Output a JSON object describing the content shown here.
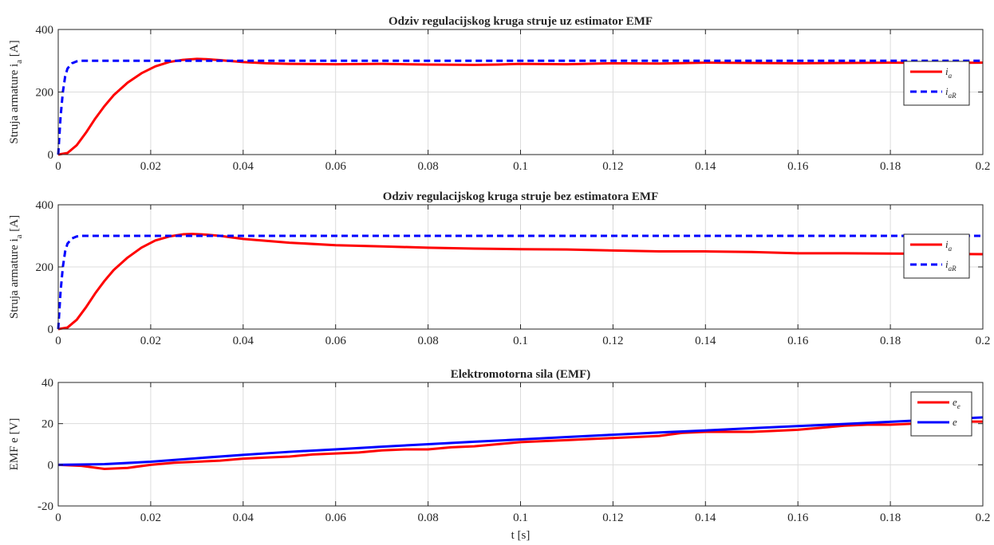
{
  "chart_data": [
    {
      "type": "line",
      "title": "Odziv regulacijskog kruga struje uz estimator EMF",
      "ylabel": "Struja armature i",
      "ylabel_sub": "a",
      "ylabel_unit": " [A]",
      "xlabel": "",
      "xlim": [
        0,
        0.2
      ],
      "ylim": [
        0,
        400
      ],
      "xticks": [
        0,
        0.02,
        0.04,
        0.06,
        0.08,
        0.1,
        0.12,
        0.14,
        0.16,
        0.18,
        0.2
      ],
      "xtick_labels": [
        "0",
        "0.02",
        "0.04",
        "0.06",
        "0.08",
        "0.1",
        "0.12",
        "0.14",
        "0.16",
        "0.18",
        "0.2"
      ],
      "yticks": [
        0,
        200,
        400
      ],
      "ytick_labels": [
        "0",
        "200",
        "400"
      ],
      "grid": true,
      "legend_position": "right",
      "series": [
        {
          "name": "i",
          "name_sub": "a",
          "color": "#ff0000",
          "style": "solid",
          "x": [
            0,
            0.002,
            0.004,
            0.006,
            0.008,
            0.01,
            0.012,
            0.015,
            0.018,
            0.021,
            0.024,
            0.027,
            0.03,
            0.032,
            0.035,
            0.04,
            0.045,
            0.05,
            0.06,
            0.07,
            0.08,
            0.09,
            0.095,
            0.1,
            0.11,
            0.12,
            0.13,
            0.14,
            0.15,
            0.16,
            0.17,
            0.18,
            0.19,
            0.2
          ],
          "y": [
            0,
            5,
            30,
            70,
            115,
            155,
            190,
            230,
            260,
            282,
            296,
            303,
            306,
            305,
            302,
            296,
            292,
            290,
            289,
            290,
            288,
            287,
            288,
            290,
            289,
            292,
            291,
            294,
            293,
            292,
            293,
            294,
            293,
            294
          ]
        },
        {
          "name": "i",
          "name_sub": "aR",
          "color": "#0000ff",
          "style": "dashed",
          "x": [
            0,
            0.0005,
            0.001,
            0.0015,
            0.002,
            0.003,
            0.004,
            0.005,
            0.2
          ],
          "y": [
            0,
            120,
            200,
            250,
            275,
            292,
            298,
            300,
            300
          ]
        }
      ]
    },
    {
      "type": "line",
      "title": "Odziv regulacijskog kruga struje bez estimatora EMF",
      "ylabel": "Struja armature i",
      "ylabel_sub": "a",
      "ylabel_unit": " [A]",
      "xlabel": "",
      "xlim": [
        0,
        0.2
      ],
      "ylim": [
        0,
        400
      ],
      "xticks": [
        0,
        0.02,
        0.04,
        0.06,
        0.08,
        0.1,
        0.12,
        0.14,
        0.16,
        0.18,
        0.2
      ],
      "xtick_labels": [
        "0",
        "0.02",
        "0.04",
        "0.06",
        "0.08",
        "0.1",
        "0.12",
        "0.14",
        "0.16",
        "0.18",
        "0.2"
      ],
      "yticks": [
        0,
        200,
        400
      ],
      "ytick_labels": [
        "0",
        "200",
        "400"
      ],
      "grid": true,
      "legend_position": "right",
      "series": [
        {
          "name": "i",
          "name_sub": "a",
          "color": "#ff0000",
          "style": "solid",
          "x": [
            0,
            0.002,
            0.004,
            0.006,
            0.008,
            0.01,
            0.012,
            0.015,
            0.018,
            0.021,
            0.024,
            0.027,
            0.029,
            0.032,
            0.035,
            0.04,
            0.05,
            0.06,
            0.07,
            0.08,
            0.09,
            0.1,
            0.11,
            0.12,
            0.13,
            0.14,
            0.15,
            0.16,
            0.17,
            0.18,
            0.19,
            0.2
          ],
          "y": [
            0,
            5,
            30,
            70,
            115,
            155,
            190,
            230,
            262,
            285,
            298,
            305,
            306,
            304,
            300,
            290,
            278,
            270,
            266,
            262,
            259,
            257,
            256,
            253,
            250,
            250,
            248,
            244,
            244,
            243,
            242,
            241
          ]
        },
        {
          "name": "i",
          "name_sub": "aR",
          "color": "#0000ff",
          "style": "dashed",
          "x": [
            0,
            0.0005,
            0.001,
            0.0015,
            0.002,
            0.003,
            0.004,
            0.005,
            0.2
          ],
          "y": [
            0,
            120,
            200,
            250,
            275,
            292,
            298,
            300,
            300
          ]
        }
      ]
    },
    {
      "type": "line",
      "title": "Elektromotorna sila (EMF)",
      "ylabel": "EMF e [V]",
      "ylabel_sub": "",
      "ylabel_unit": "",
      "xlabel": "t [s]",
      "xlim": [
        0,
        0.2
      ],
      "ylim": [
        -20,
        40
      ],
      "xticks": [
        0,
        0.02,
        0.04,
        0.06,
        0.08,
        0.1,
        0.12,
        0.14,
        0.16,
        0.18,
        0.2
      ],
      "xtick_labels": [
        "0",
        "0.02",
        "0.04",
        "0.06",
        "0.08",
        "0.1",
        "0.12",
        "0.14",
        "0.16",
        "0.18",
        "0.2"
      ],
      "yticks": [
        -20,
        0,
        20,
        40
      ],
      "ytick_labels": [
        "-20",
        "0",
        "20",
        "40"
      ],
      "grid": true,
      "legend_position": "top-right",
      "series": [
        {
          "name": "e",
          "name_sub": "e",
          "color": "#ff0000",
          "style": "solid",
          "x": [
            0,
            0.005,
            0.01,
            0.015,
            0.02,
            0.025,
            0.03,
            0.035,
            0.04,
            0.045,
            0.05,
            0.055,
            0.06,
            0.065,
            0.07,
            0.075,
            0.08,
            0.085,
            0.09,
            0.095,
            0.1,
            0.105,
            0.11,
            0.115,
            0.12,
            0.125,
            0.13,
            0.135,
            0.14,
            0.145,
            0.15,
            0.155,
            0.16,
            0.165,
            0.17,
            0.175,
            0.18,
            0.185,
            0.19,
            0.195,
            0.2
          ],
          "y": [
            0,
            -0.5,
            -2,
            -1.5,
            0,
            1,
            1.5,
            2,
            3,
            3.5,
            4,
            5,
            5.5,
            6,
            7,
            7.5,
            7.5,
            8.5,
            9,
            10,
            11,
            11.5,
            12,
            12.5,
            13,
            13.5,
            14,
            15.5,
            16,
            16,
            16,
            16.5,
            17,
            18,
            19,
            19.5,
            19.5,
            20,
            20.5,
            21,
            21
          ]
        },
        {
          "name": "e",
          "name_sub": "",
          "color": "#0000ff",
          "style": "solid",
          "x": [
            0,
            0.01,
            0.02,
            0.03,
            0.04,
            0.05,
            0.06,
            0.07,
            0.08,
            0.09,
            0.1,
            0.11,
            0.12,
            0.13,
            0.14,
            0.15,
            0.16,
            0.17,
            0.18,
            0.19,
            0.2
          ],
          "y": [
            0,
            0.3,
            1.5,
            3.2,
            4.8,
            6.3,
            7.5,
            8.8,
            10,
            11.2,
            12.3,
            13.5,
            14.6,
            15.7,
            16.7,
            17.8,
            18.8,
            19.8,
            20.9,
            22,
            23
          ]
        }
      ]
    }
  ]
}
